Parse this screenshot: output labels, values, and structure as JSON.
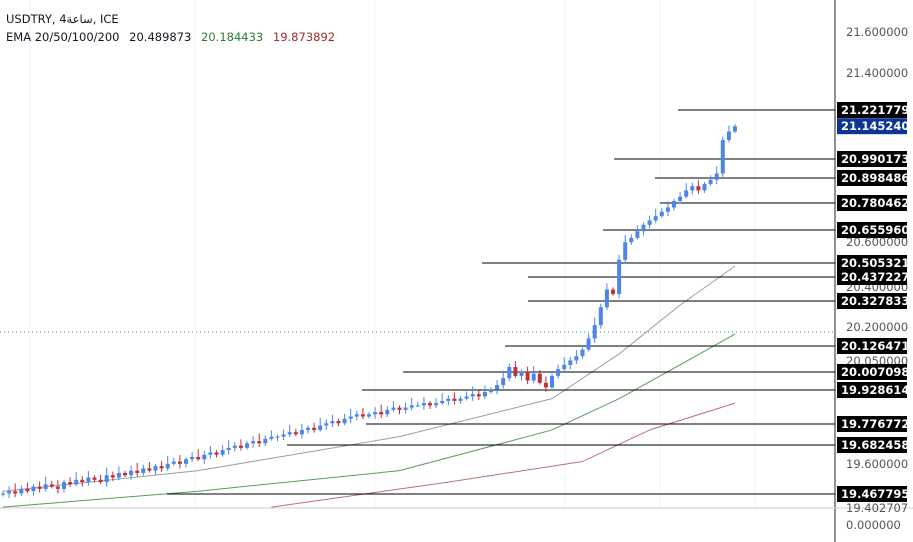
{
  "header": {
    "symbol_line": "USDTRY, 4ساعة, ICE",
    "ema_label": "EMA 20/50/100/200",
    "ema_values": [
      "20.489873",
      "20.184433",
      "19.873892"
    ]
  },
  "colors": {
    "up": "#4c86e8",
    "down": "#c2303a",
    "ema20": "#9e9e9e",
    "ema50": "#5a9a5a",
    "ema100": "#c07070",
    "current_tag": "#0d3591",
    "level_tag": "#000000"
  },
  "axis": {
    "labels": [
      "21.600000",
      "21.400000",
      "20.600000",
      "20.400000",
      "20.200000",
      "20.050000",
      "19.600000",
      "19.402707",
      "0.000000"
    ],
    "current_price": "21.145240"
  },
  "chart_data": {
    "type": "candlestick",
    "symbol": "USDTRY",
    "timeframe": "4h",
    "levels": [
      "21.221779",
      "20.990173",
      "20.898486",
      "20.780462",
      "20.655960",
      "20.505321",
      "20.437227",
      "20.327833",
      "20.126471",
      "20.007098",
      "19.928614",
      "19.776772",
      "19.682458",
      "19.467795"
    ],
    "closes": [
      19.47,
      19.48,
      19.47,
      19.49,
      19.48,
      19.5,
      19.49,
      19.51,
      19.5,
      19.49,
      19.52,
      19.51,
      19.53,
      19.52,
      19.54,
      19.53,
      19.52,
      19.55,
      19.54,
      19.56,
      19.55,
      19.57,
      19.56,
      19.58,
      19.57,
      19.59,
      19.58,
      19.6,
      19.61,
      19.6,
      19.62,
      19.63,
      19.62,
      19.64,
      19.65,
      19.64,
      19.66,
      19.67,
      19.68,
      19.67,
      19.69,
      19.7,
      19.69,
      19.71,
      19.72,
      19.72,
      19.73,
      19.74,
      19.73,
      19.75,
      19.76,
      19.75,
      19.77,
      19.78,
      19.79,
      19.78,
      19.8,
      19.81,
      19.82,
      19.81,
      19.82,
      19.83,
      19.82,
      19.84,
      19.85,
      19.84,
      19.85,
      19.86,
      19.86,
      19.87,
      19.86,
      19.87,
      19.88,
      19.89,
      19.88,
      19.89,
      19.9,
      19.91,
      19.9,
      19.92,
      19.93,
      19.95,
      19.98,
      20.03,
      19.99,
      20.01,
      19.97,
      20.0,
      19.96,
      19.94,
      19.99,
      20.02,
      20.04,
      20.06,
      20.08,
      20.11,
      20.16,
      20.22,
      20.3,
      20.38,
      20.36,
      20.52,
      20.6,
      20.62,
      20.65,
      20.68,
      20.7,
      20.72,
      20.74,
      20.76,
      20.79,
      20.81,
      20.84,
      20.86,
      20.84,
      20.87,
      20.89,
      20.92,
      21.08,
      21.12,
      21.145
    ],
    "ema20": [
      [
        0,
        19.48
      ],
      [
        32,
        19.57
      ],
      [
        65,
        19.72
      ],
      [
        90,
        19.89
      ],
      [
        101,
        20.09
      ],
      [
        111,
        20.31
      ],
      [
        120,
        20.49
      ]
    ],
    "ema50": [
      [
        0,
        19.41
      ],
      [
        32,
        19.48
      ],
      [
        65,
        19.57
      ],
      [
        90,
        19.75
      ],
      [
        101,
        19.89
      ],
      [
        111,
        20.04
      ],
      [
        120,
        20.18
      ]
    ],
    "ema100": [
      [
        44,
        19.41
      ],
      [
        73,
        19.52
      ],
      [
        95,
        19.61
      ],
      [
        106,
        19.75
      ],
      [
        120,
        19.87
      ]
    ]
  }
}
